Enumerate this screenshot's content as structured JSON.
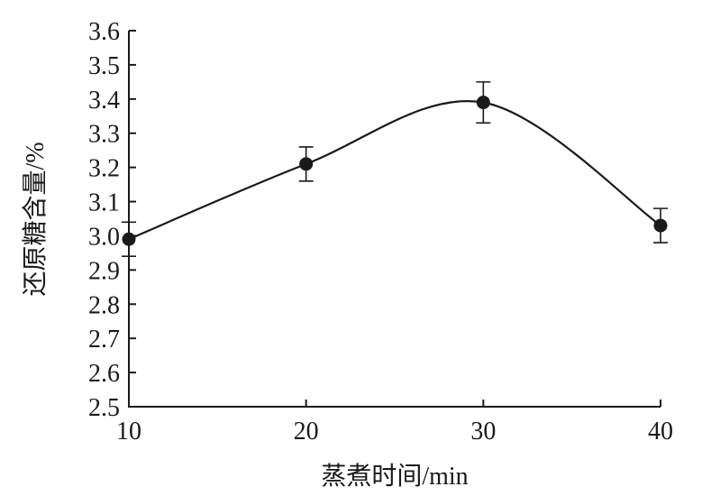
{
  "chart_data": {
    "type": "line",
    "xlabel": "蒸煮时间/min",
    "ylabel": "还原糖含量/%",
    "x": [
      10,
      20,
      30,
      40
    ],
    "x_ticks": [
      "10",
      "20",
      "30",
      "40"
    ],
    "y_ticks": [
      "2.5",
      "2.6",
      "2.7",
      "2.8",
      "2.9",
      "3.0",
      "3.1",
      "3.2",
      "3.3",
      "3.4",
      "3.5",
      "3.6"
    ],
    "xlim": [
      10,
      40
    ],
    "ylim": [
      2.5,
      3.6
    ],
    "smooth": true,
    "grid": false,
    "series": [
      {
        "values": [
          2.99,
          3.21,
          3.39,
          3.03
        ],
        "error": [
          0.05,
          0.05,
          0.06,
          0.05
        ],
        "color": "#1a1a1a",
        "marker": "filled-circle"
      }
    ]
  }
}
